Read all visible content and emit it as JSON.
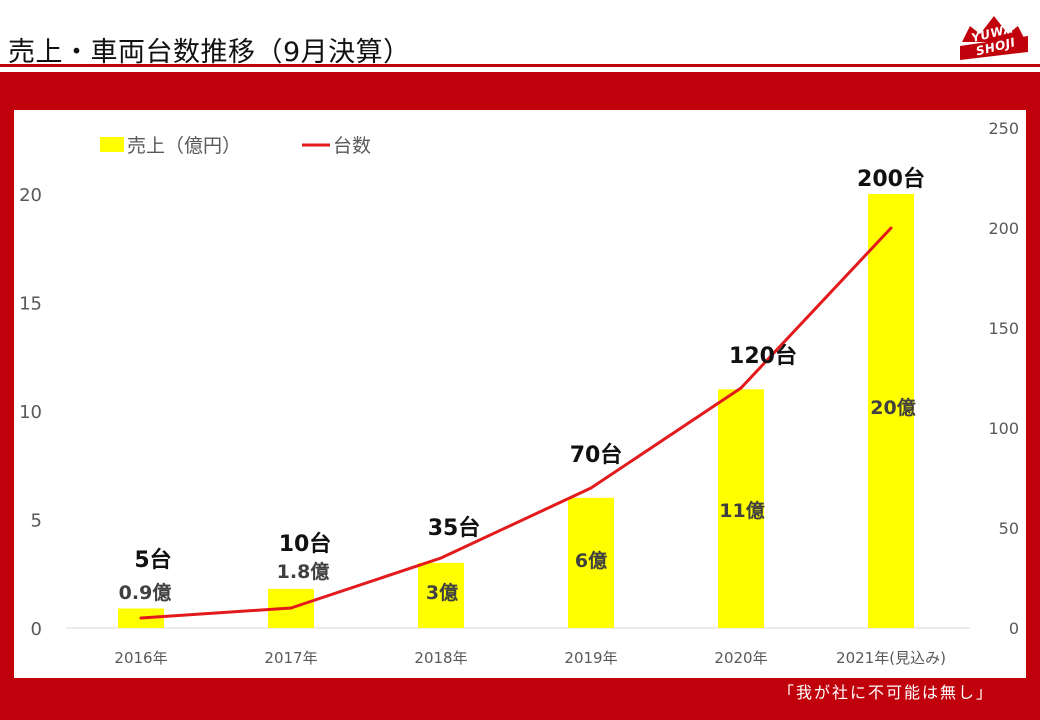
{
  "page": {
    "title": "売上・車両台数推移（9月決算）",
    "logo_text": "YUWA SHOJI",
    "motto": "「我が社に不可能は無し」"
  },
  "colors": {
    "frame": "#c0000b",
    "bar": "#ffff00",
    "line": "#e31a1c"
  },
  "chart_data": {
    "type": "bar",
    "categories": [
      "2016年",
      "2017年",
      "2018年",
      "2019年",
      "2020年",
      "2021年(見込み)"
    ],
    "series": [
      {
        "name": "売上（億円）",
        "type": "bar",
        "axis": "left",
        "values": [
          0.9,
          1.8,
          3,
          6,
          11,
          20
        ],
        "labels": [
          "0.9億",
          "1.8億",
          "3億",
          "6億",
          "11億",
          "20億"
        ]
      },
      {
        "name": "台数",
        "type": "line",
        "axis": "right",
        "values": [
          5,
          10,
          35,
          70,
          120,
          200
        ],
        "labels": [
          "5台",
          "10台",
          "35台",
          "70台",
          "120台",
          "200台"
        ]
      }
    ],
    "y_left": {
      "ylim": [
        0,
        23
      ],
      "ticks": [
        0,
        5,
        10,
        15,
        20
      ],
      "tick_labels": [
        "0",
        "5",
        "10",
        "15",
        "20"
      ]
    },
    "y_right": {
      "ylim": [
        0,
        250
      ],
      "ticks": [
        0,
        50,
        100,
        150,
        200,
        250
      ],
      "tick_labels": [
        "0",
        "50",
        "100",
        "150",
        "200",
        "250"
      ]
    },
    "legend_position": "top-left",
    "grid": false
  }
}
